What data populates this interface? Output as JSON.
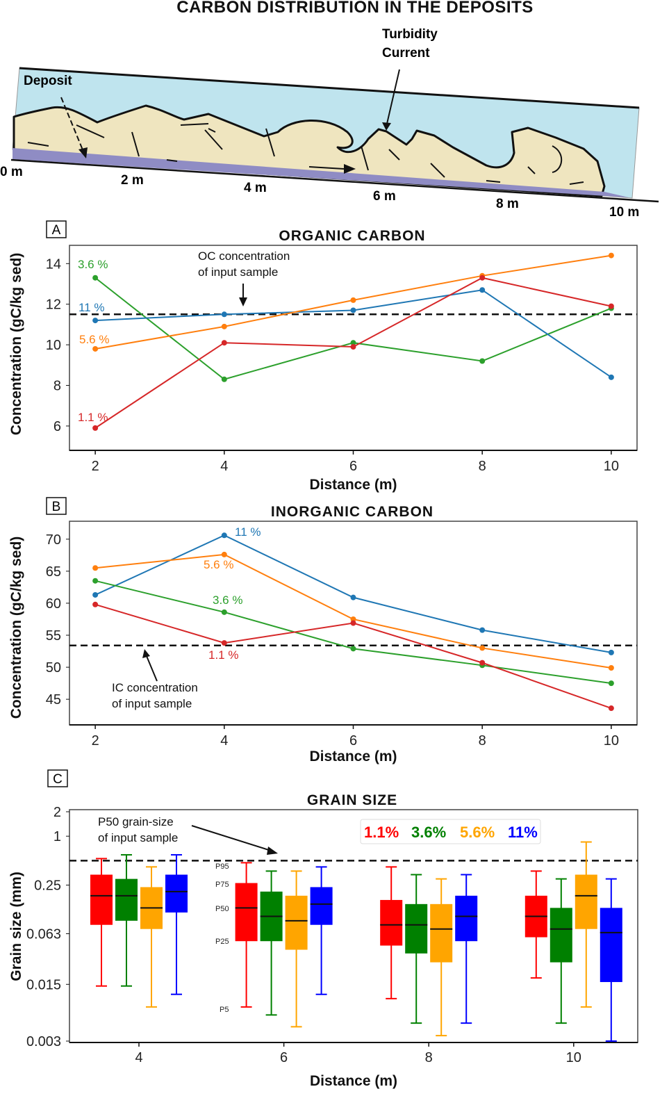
{
  "diagram": {
    "title": "CARBON DISTRIBUTION IN THE DEPOSITS",
    "turbidity_label": [
      "Turbidity",
      "Current"
    ],
    "deposit_label": "Deposit",
    "distance_labels": [
      "0 m",
      "2 m",
      "4 m",
      "6 m",
      "8 m",
      "10 m"
    ],
    "colors": {
      "water": "#bfe4ee",
      "deposit": "#efe5bf",
      "base_layer": "#8f8cc4"
    }
  },
  "chart_data": [
    {
      "panel": "A",
      "type": "line",
      "title": "ORGANIC CARBON",
      "xlabel": "Distance (m)",
      "ylabel": "Concentration (gC/kg sed)",
      "x": [
        2,
        4,
        6,
        8,
        10
      ],
      "xticks": [
        "2",
        "4",
        "6",
        "8",
        "10"
      ],
      "yticks": [
        "6",
        "8",
        "10",
        "12",
        "14"
      ],
      "xlim": [
        1.6,
        10.4
      ],
      "ylim": [
        4.8,
        14.9
      ],
      "grid": false,
      "reference_line": {
        "value": 11.5,
        "label": [
          "OC concentration",
          "of input sample"
        ]
      },
      "series": [
        {
          "name": "3.6 %",
          "color": "#2ca02c",
          "values": [
            13.3,
            8.3,
            10.1,
            9.2,
            11.8
          ]
        },
        {
          "name": "11 %",
          "color": "#1f77b4",
          "values": [
            11.2,
            11.5,
            11.7,
            12.7,
            8.4
          ]
        },
        {
          "name": "5.6 %",
          "color": "#ff7f0e",
          "values": [
            9.8,
            10.9,
            12.2,
            13.4,
            14.4
          ]
        },
        {
          "name": "1.1 %",
          "color": "#d62728",
          "values": [
            5.9,
            10.1,
            9.9,
            13.3,
            11.9
          ]
        }
      ]
    },
    {
      "panel": "B",
      "type": "line",
      "title": "INORGANIC CARBON",
      "xlabel": "Distance (m)",
      "ylabel": "Concentration (gC/kg sed)",
      "x": [
        2,
        4,
        6,
        8,
        10
      ],
      "xticks": [
        "2",
        "4",
        "6",
        "8",
        "10"
      ],
      "yticks": [
        "45",
        "50",
        "55",
        "60",
        "65",
        "70"
      ],
      "xlim": [
        1.6,
        10.4
      ],
      "ylim": [
        41,
        72.8
      ],
      "grid": false,
      "reference_line": {
        "value": 53.4,
        "label": [
          "IC concentration",
          "of input sample"
        ]
      },
      "series": [
        {
          "name": "11 %",
          "color": "#1f77b4",
          "values": [
            61.3,
            70.6,
            60.9,
            55.8,
            52.3
          ]
        },
        {
          "name": "5.6 %",
          "color": "#ff7f0e",
          "values": [
            65.5,
            67.6,
            57.5,
            53.0,
            49.9
          ]
        },
        {
          "name": "3.6 %",
          "color": "#2ca02c",
          "values": [
            63.5,
            58.6,
            52.9,
            50.3,
            47.5
          ]
        },
        {
          "name": "1.1 %",
          "color": "#d62728",
          "values": [
            59.8,
            53.8,
            56.9,
            50.7,
            43.6
          ]
        }
      ]
    },
    {
      "panel": "C",
      "type": "box",
      "title": "GRAIN SIZE",
      "xlabel": "Distance (m)",
      "ylabel": "Grain size (mm)",
      "yscale": "log",
      "categories": [
        "4",
        "6",
        "8",
        "10"
      ],
      "yticks": [
        "2",
        "1",
        "0.25",
        "0.063",
        "0.015",
        "0.003"
      ],
      "ylim": [
        0.003,
        2
      ],
      "grid": false,
      "legend": {
        "placement": "top-right",
        "entries": [
          "1.1%",
          "3.6%",
          "5.6%",
          "11%"
        ]
      },
      "percentile_labels": [
        "P95",
        "P75",
        "P50",
        "P25",
        "P5"
      ],
      "reference_line": {
        "value": 0.5,
        "label": [
          "P50 grain-size",
          "of input sample"
        ]
      },
      "series": [
        {
          "name": "1.1%",
          "color": "#ff0000",
          "boxes": [
            {
              "p95": 0.53,
              "p75": 0.336,
              "p50": 0.185,
              "p25": 0.081,
              "p5": 0.0143
            },
            {
              "p95": 0.471,
              "p75": 0.265,
              "p50": 0.131,
              "p25": 0.051,
              "p5": 0.0079
            },
            {
              "p95": 0.419,
              "p75": 0.164,
              "p50": 0.081,
              "p25": 0.045,
              "p5": 0.01
            },
            {
              "p95": 0.372,
              "p75": 0.185,
              "p50": 0.103,
              "p25": 0.057,
              "p5": 0.018
            }
          ]
        },
        {
          "name": "3.6%",
          "color": "#008000",
          "boxes": [
            {
              "p95": 0.59,
              "p75": 0.298,
              "p50": 0.185,
              "p25": 0.091,
              "p5": 0.0143
            },
            {
              "p95": 0.372,
              "p75": 0.208,
              "p50": 0.103,
              "p25": 0.051,
              "p5": 0.0063
            },
            {
              "p95": 0.336,
              "p75": 0.146,
              "p50": 0.081,
              "p25": 0.036,
              "p5": 0.005
            },
            {
              "p95": 0.298,
              "p75": 0.131,
              "p50": 0.072,
              "p25": 0.028,
              "p5": 0.005
            }
          ]
        },
        {
          "name": "5.6%",
          "color": "#ffa500",
          "boxes": [
            {
              "p95": 0.419,
              "p75": 0.236,
              "p50": 0.131,
              "p25": 0.072,
              "p5": 0.0079
            },
            {
              "p95": 0.372,
              "p75": 0.185,
              "p50": 0.091,
              "p25": 0.04,
              "p5": 0.0045
            },
            {
              "p95": 0.298,
              "p75": 0.146,
              "p50": 0.072,
              "p25": 0.028,
              "p5": 0.0035
            },
            {
              "p95": 0.849,
              "p75": 0.336,
              "p50": 0.185,
              "p25": 0.072,
              "p5": 0.0079
            }
          ]
        },
        {
          "name": "11%",
          "color": "#0000ff",
          "boxes": [
            {
              "p95": 0.59,
              "p75": 0.336,
              "p50": 0.208,
              "p25": 0.115,
              "p5": 0.0113
            },
            {
              "p95": 0.419,
              "p75": 0.236,
              "p50": 0.146,
              "p25": 0.081,
              "p5": 0.0113
            },
            {
              "p95": 0.336,
              "p75": 0.185,
              "p50": 0.103,
              "p25": 0.051,
              "p5": 0.005
            },
            {
              "p95": 0.298,
              "p75": 0.131,
              "p50": 0.065,
              "p25": 0.016,
              "p5": 0.003
            }
          ]
        }
      ]
    }
  ]
}
